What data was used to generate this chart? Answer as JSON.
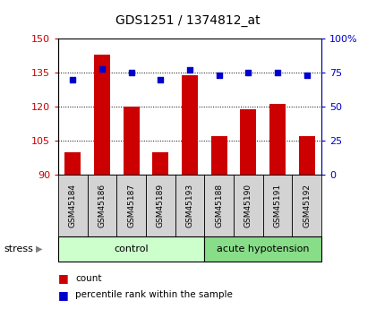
{
  "title": "GDS1251 / 1374812_at",
  "samples": [
    "GSM45184",
    "GSM45186",
    "GSM45187",
    "GSM45189",
    "GSM45193",
    "GSM45188",
    "GSM45190",
    "GSM45191",
    "GSM45192"
  ],
  "counts": [
    100,
    143,
    120,
    100,
    134,
    107,
    119,
    121,
    107
  ],
  "percentiles": [
    70,
    78,
    75,
    70,
    77,
    73,
    75,
    75,
    73
  ],
  "groups": [
    {
      "label": "control",
      "start": 0,
      "end": 5
    },
    {
      "label": "acute hypotension",
      "start": 5,
      "end": 9
    }
  ],
  "ylim_left": [
    90,
    150
  ],
  "ylim_right": [
    0,
    100
  ],
  "yticks_left": [
    90,
    105,
    120,
    135,
    150
  ],
  "yticks_right": [
    0,
    25,
    50,
    75,
    100
  ],
  "bar_color": "#cc0000",
  "dot_color": "#0000cc",
  "bg_plot": "#ffffff",
  "bg_label": "#d3d3d3",
  "bg_control": "#ccffcc",
  "bg_hypotension": "#88dd88",
  "stress_label": "stress",
  "legend_count": "count",
  "legend_pct": "percentile rank within the sample",
  "grid_ticks": [
    105,
    120,
    135
  ]
}
